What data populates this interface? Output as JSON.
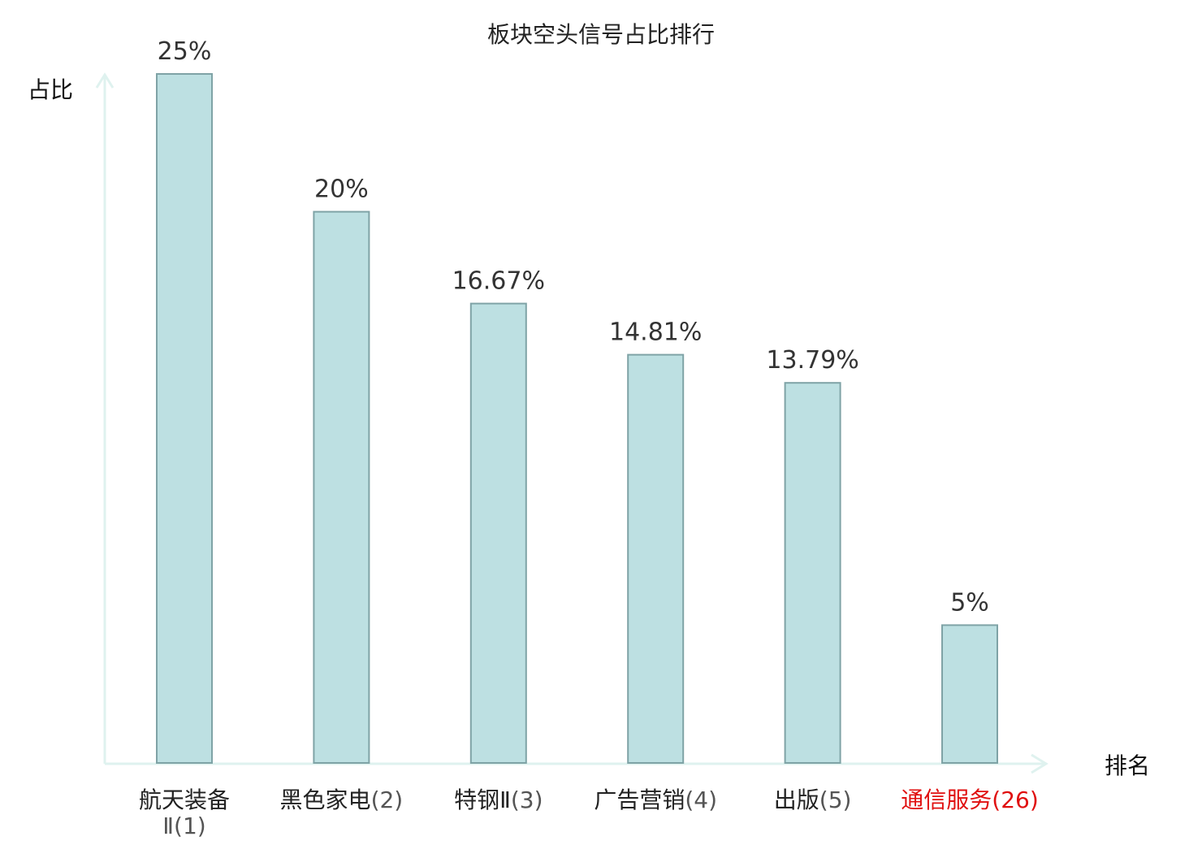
{
  "chart_data": {
    "type": "bar",
    "title": "板块空头信号占比排行",
    "ylabel": "占比",
    "xlabel": "排名",
    "ylim": [
      0,
      25
    ],
    "grid": false,
    "categories": [
      {
        "name": "航天装备Ⅱ",
        "rank": "(1)",
        "value": 25,
        "label": "25%",
        "highlight": false
      },
      {
        "name": "黑色家电",
        "rank": "(2)",
        "value": 20,
        "label": "20%",
        "highlight": false
      },
      {
        "name": "特钢Ⅱ",
        "rank": "(3)",
        "value": 16.67,
        "label": "16.67%",
        "highlight": false
      },
      {
        "name": "广告营销",
        "rank": "(4)",
        "value": 14.81,
        "label": "14.81%",
        "highlight": false
      },
      {
        "name": "出版",
        "rank": "(5)",
        "value": 13.79,
        "label": "13.79%",
        "highlight": false
      },
      {
        "name": "通信服务",
        "rank": "(26)",
        "value": 5,
        "label": "5%",
        "highlight": true
      }
    ],
    "colors": {
      "bar_fill": "#bde0e2",
      "bar_stroke": "#7fa3a6",
      "axis": "#dff2ef",
      "highlight_text": "#e01010",
      "text": "#222222"
    }
  }
}
